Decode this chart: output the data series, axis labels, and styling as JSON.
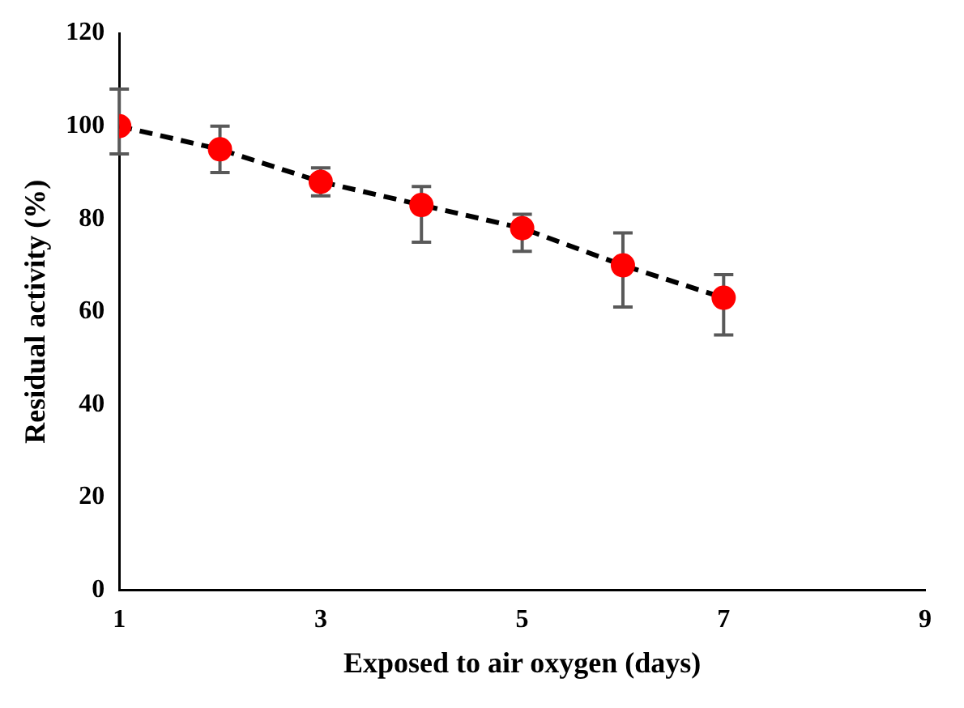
{
  "chart_data": {
    "type": "line",
    "xlabel": "Exposed to air oxygen (days)",
    "ylabel": "Residual activity (%)",
    "x": [
      1,
      2,
      3,
      4,
      5,
      6,
      7
    ],
    "series": [
      {
        "color": "#ff0000",
        "values": [
          100,
          95,
          88,
          83,
          78,
          70,
          63
        ],
        "errors": [
          [
            94,
            108
          ],
          [
            90,
            100
          ],
          [
            85,
            91
          ],
          [
            75,
            87
          ],
          [
            73,
            81
          ],
          [
            61,
            77
          ],
          [
            55,
            68
          ]
        ]
      }
    ],
    "xlim": [
      1,
      9
    ],
    "xticks": [
      1,
      3,
      5,
      7,
      9
    ],
    "ylim": [
      0,
      120
    ],
    "yticks": [
      0,
      20,
      40,
      60,
      80,
      100,
      120
    ],
    "grid": false,
    "legend": false,
    "marker": "circle",
    "line_style": "dashed"
  }
}
